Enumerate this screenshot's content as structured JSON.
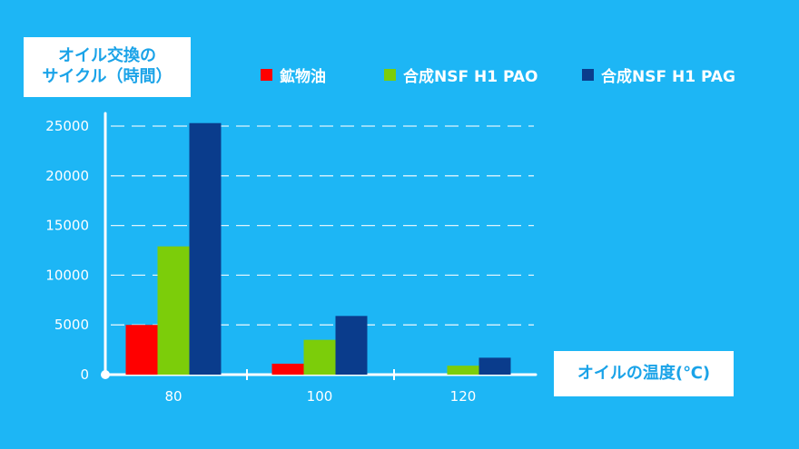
{
  "chart_data": {
    "type": "bar",
    "ylabel_lines": [
      "オイル交換の",
      "サイクル（時間）"
    ],
    "xlabel": "オイルの温度(℃)",
    "categories": [
      "80",
      "100",
      "120"
    ],
    "yticks": [
      "0",
      "5000",
      "10000",
      "15000",
      "20000",
      "25000"
    ],
    "ylim": [
      0,
      25000
    ],
    "grid": true,
    "legend_position": "top",
    "series": [
      {
        "name": "鉱物油",
        "color": "#ff0000",
        "values": [
          5000,
          1100,
          0
        ]
      },
      {
        "name": "合成NSF H1 PAO",
        "color": "#7ccd0a",
        "values": [
          12900,
          3500,
          900
        ]
      },
      {
        "name": "合成NSF H1 PAG",
        "color": "#0a3c8c",
        "values": [
          25300,
          5900,
          1700
        ]
      }
    ]
  }
}
